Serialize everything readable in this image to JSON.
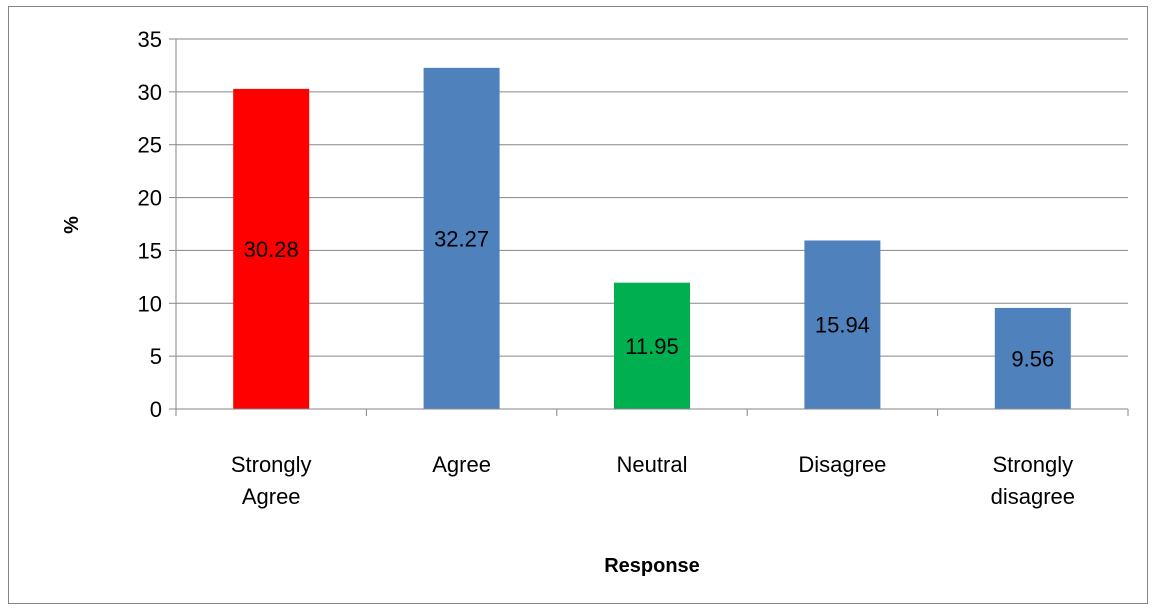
{
  "chart_data": {
    "type": "bar",
    "categories": [
      [
        "Strongly",
        "Agree"
      ],
      [
        "Agree"
      ],
      [
        "Neutral"
      ],
      [
        "Disagree"
      ],
      [
        "Strongly",
        "disagree"
      ]
    ],
    "values": [
      30.28,
      32.27,
      11.95,
      15.94,
      9.56
    ],
    "data_labels": [
      "30.28",
      "32.27",
      "11.95",
      "15.94",
      "9.56"
    ],
    "bar_colors": [
      "#ff0000",
      "#4f81bd",
      "#00b050",
      "#4f81bd",
      "#4f81bd"
    ],
    "title": "",
    "xlabel": "Response",
    "ylabel": "%",
    "ylim": [
      0,
      35
    ],
    "yticks": [
      "0",
      "5",
      "10",
      "15",
      "20",
      "25",
      "30",
      "35"
    ],
    "grid": true,
    "legend": "none"
  }
}
